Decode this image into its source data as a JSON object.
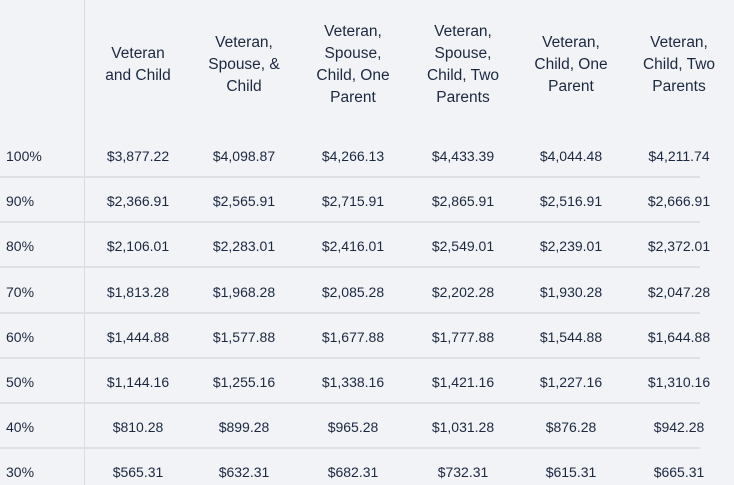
{
  "table": {
    "columns": [
      "Veteran\nand Child",
      "Veteran,\nSpouse, &\nChild",
      "Veteran,\nSpouse,\nChild, One\nParent",
      "Veteran,\nSpouse,\nChild, Two\nParents",
      "Veteran,\nChild, One\nParent",
      "Veteran,\nChild, Two\nParents"
    ],
    "rows": [
      {
        "label": "100%",
        "values": [
          "$3,877.22",
          "$4,098.87",
          "$4,266.13",
          "$4,433.39",
          "$4,044.48",
          "$4,211.74"
        ]
      },
      {
        "label": "90%",
        "values": [
          "$2,366.91",
          "$2,565.91",
          "$2,715.91",
          "$2,865.91",
          "$2,516.91",
          "$2,666.91"
        ]
      },
      {
        "label": "80%",
        "values": [
          "$2,106.01",
          "$2,283.01",
          "$2,416.01",
          "$2,549.01",
          "$2,239.01",
          "$2,372.01"
        ]
      },
      {
        "label": "70%",
        "values": [
          "$1,813.28",
          "$1,968.28",
          "$2,085.28",
          "$2,202.28",
          "$1,930.28",
          "$2,047.28"
        ]
      },
      {
        "label": "60%",
        "values": [
          "$1,444.88",
          "$1,577.88",
          "$1,677.88",
          "$1,777.88",
          "$1,544.88",
          "$1,644.88"
        ]
      },
      {
        "label": "50%",
        "values": [
          "$1,144.16",
          "$1,255.16",
          "$1,338.16",
          "$1,421.16",
          "$1,227.16",
          "$1,310.16"
        ]
      },
      {
        "label": "40%",
        "values": [
          "$810.28",
          "$899.28",
          "$965.28",
          "$1,031.28",
          "$876.28",
          "$942.28"
        ]
      },
      {
        "label": "30%",
        "values": [
          "$565.31",
          "$632.31",
          "$682.31",
          "$732.31",
          "$615.31",
          "$665.31"
        ]
      }
    ]
  }
}
